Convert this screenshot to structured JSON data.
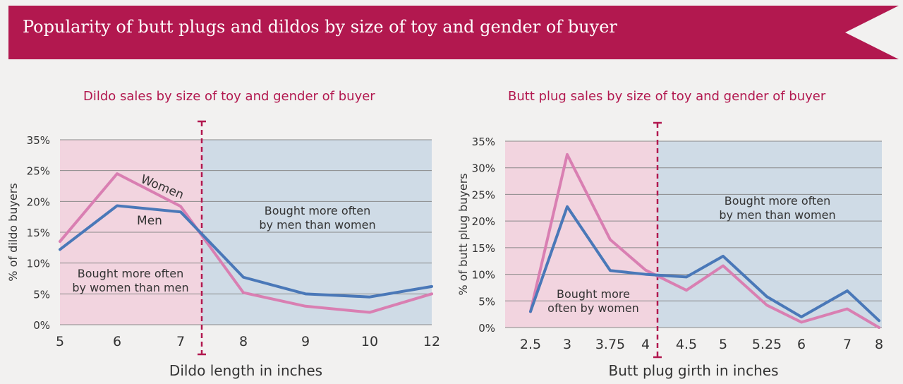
{
  "header": {
    "title": "Popularity of butt plugs and dildos by size of toy and gender of buyer"
  },
  "colors": {
    "banner": "#b2184f",
    "women": "#d97fb2",
    "men": "#4a78b8",
    "women_region": "#f2d4df",
    "men_region": "#cfdbe6",
    "title": "#b2184f"
  },
  "chart_data": [
    {
      "type": "line",
      "title": "Dildo sales by size of toy and gender of buyer",
      "xlabel": "Dildo length in inches",
      "ylabel": "% of dildo buyers",
      "categories": [
        "5",
        "6",
        "7",
        "8",
        "9",
        "10",
        "12"
      ],
      "yticks": [
        "0%",
        "5%",
        "10%",
        "15%",
        "20%",
        "25%",
        "35%"
      ],
      "ylim": [
        0,
        30
      ],
      "grid": true,
      "series": [
        {
          "name": "Women",
          "values": [
            13.5,
            24.5,
            19.2,
            5.2,
            3.0,
            2.0,
            5.0
          ]
        },
        {
          "name": "Men",
          "values": [
            12.2,
            19.3,
            18.3,
            7.7,
            5.0,
            4.5,
            6.2
          ]
        }
      ],
      "split_after_index": 2.5,
      "annotations": {
        "women_region": [
          "Bought more often",
          "by women than men"
        ],
        "men_region": [
          "Bought more often",
          "by men than women"
        ]
      }
    },
    {
      "type": "line",
      "title": "Butt plug sales by size of toy and gender of buyer",
      "xlabel": "Butt plug girth in inches",
      "ylabel": "% of butt plug buyers",
      "categories": [
        "2.5",
        "3",
        "3.75",
        "4",
        "4.5",
        "5",
        "5.25",
        "6",
        "7",
        "8"
      ],
      "yticks": [
        "0%",
        "5%",
        "10%",
        "15%",
        "20%",
        "25%",
        "30%",
        "35%"
      ],
      "ylim": [
        0,
        35
      ],
      "grid": true,
      "series": [
        {
          "name": "Women",
          "values": [
            3.0,
            32.5,
            16.5,
            10.8,
            7.0,
            11.6,
            4.2,
            1.0,
            3.5,
            0.0
          ]
        },
        {
          "name": "Men",
          "values": [
            3.0,
            22.7,
            10.7,
            10.0,
            9.5,
            13.4,
            5.8,
            2.0,
            6.9,
            1.3
          ]
        }
      ],
      "split_after_index": 3.5,
      "annotations": {
        "women_region": [
          "Bought more",
          "often by women"
        ],
        "men_region": [
          "Bought more often",
          "by men than women"
        ]
      }
    }
  ]
}
